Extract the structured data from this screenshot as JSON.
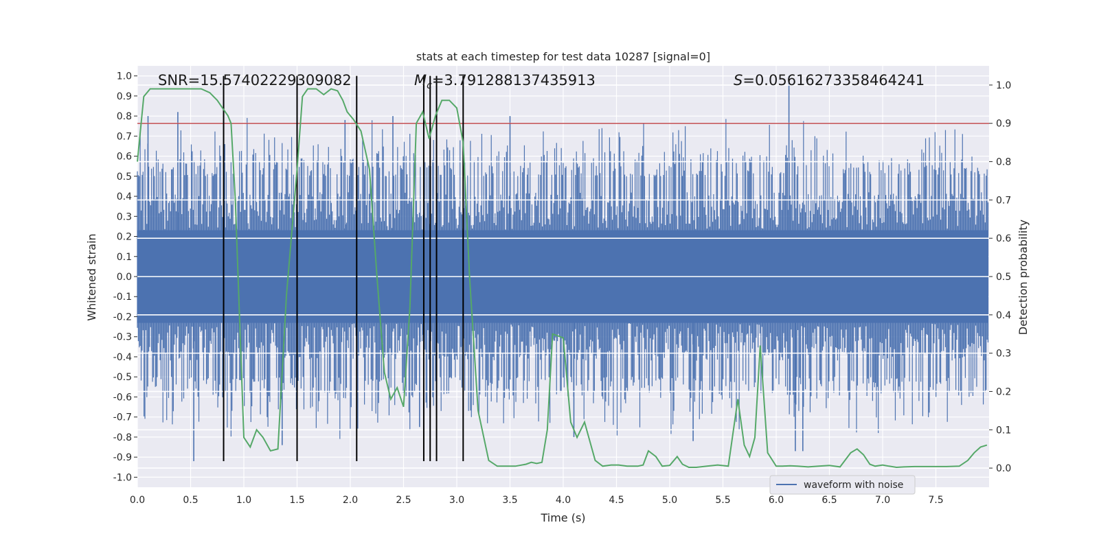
{
  "chart_data": {
    "type": "line",
    "title": "stats at each timestep for test data 10287 [signal=0]",
    "xlabel": "Time (s)",
    "ylabel_left": "Whitened strain",
    "ylabel_right": "Detection probability",
    "xlim": [
      0.0,
      8.0
    ],
    "ylim_left": [
      -1.05,
      1.05
    ],
    "ylim_right": [
      -0.05,
      1.05
    ],
    "x_ticks": [
      "0.0",
      "0.5",
      "1.0",
      "1.5",
      "2.0",
      "2.5",
      "3.0",
      "3.5",
      "4.0",
      "4.5",
      "5.0",
      "5.5",
      "6.0",
      "6.5",
      "7.0",
      "7.5"
    ],
    "y_ticks_left": [
      "1.0",
      "0.9",
      "0.8",
      "0.7",
      "0.6",
      "0.5",
      "0.4",
      "0.3",
      "0.2",
      "0.1",
      "0.0",
      "-0.1",
      "-0.2",
      "-0.3",
      "-0.4",
      "-0.5",
      "-0.6",
      "-0.7",
      "-0.8",
      "-0.9",
      "-1.0"
    ],
    "y_ticks_right": [
      "1.0",
      "0.9",
      "0.8",
      "0.7",
      "0.6",
      "0.5",
      "0.4",
      "0.3",
      "0.2",
      "0.1",
      "0.0"
    ],
    "grid": true,
    "legend": {
      "entries": [
        "waveform with noise"
      ],
      "location": "lower right"
    },
    "annotations": {
      "snr": "SNR=15.57402229309082",
      "mc_symbol": "M",
      "mc_subscript": "c",
      "mc_value": "=3.791288137435913",
      "s_symbol": "S",
      "s_value": "=0.05616273358464241"
    },
    "threshold": {
      "value": 0.9,
      "axis": "right",
      "color": "#c44e52"
    },
    "vertical_lines": {
      "x": [
        0.81,
        1.5,
        2.06,
        2.69,
        2.75,
        2.81,
        3.06
      ],
      "y_range": [
        -0.92,
        1.0
      ],
      "color": "#000000"
    },
    "waveform": {
      "name": "waveform with noise",
      "color": "#4c72b0",
      "x_start": 0.0,
      "x_end": 7.99,
      "n_samples": 900,
      "core_amplitude": 0.42,
      "spike_amplitude_range": [
        0.5,
        0.82
      ],
      "spikes": [
        {
          "x": 0.1,
          "y": 0.8
        },
        {
          "x": 0.38,
          "y": 0.82
        },
        {
          "x": 0.53,
          "y": -0.92
        },
        {
          "x": 0.82,
          "y": 0.66
        },
        {
          "x": 1.36,
          "y": -0.84
        },
        {
          "x": 1.95,
          "y": 0.78
        },
        {
          "x": 2.4,
          "y": 0.8
        },
        {
          "x": 3.5,
          "y": 0.8
        },
        {
          "x": 6.12,
          "y": 1.0
        },
        {
          "x": 6.25,
          "y": -0.87
        },
        {
          "x": 6.18,
          "y": -0.87
        },
        {
          "x": 1.22,
          "y": -0.7
        },
        {
          "x": 2.65,
          "y": -0.75
        },
        {
          "x": 5.22,
          "y": -0.82
        },
        {
          "x": 4.1,
          "y": -0.8
        }
      ]
    },
    "probability_series": {
      "name": "detection probability",
      "color": "#55a868",
      "x": [
        0.0,
        0.06,
        0.12,
        0.2,
        0.3,
        0.4,
        0.5,
        0.6,
        0.68,
        0.75,
        0.8,
        0.85,
        0.88,
        0.92,
        1.0,
        1.06,
        1.12,
        1.18,
        1.25,
        1.32,
        1.4,
        1.5,
        1.55,
        1.6,
        1.68,
        1.75,
        1.82,
        1.88,
        1.93,
        1.97,
        2.03,
        2.1,
        2.18,
        2.25,
        2.32,
        2.38,
        2.44,
        2.5,
        2.56,
        2.62,
        2.68,
        2.74,
        2.8,
        2.86,
        2.93,
        3.0,
        3.06,
        3.12,
        3.2,
        3.3,
        3.38,
        3.45,
        3.55,
        3.65,
        3.7,
        3.75,
        3.8,
        3.85,
        3.9,
        4.0,
        4.07,
        4.13,
        4.2,
        4.3,
        4.37,
        4.45,
        4.52,
        4.6,
        4.7,
        4.75,
        4.8,
        4.87,
        4.93,
        5.0,
        5.07,
        5.12,
        5.18,
        5.25,
        5.35,
        5.45,
        5.55,
        5.64,
        5.7,
        5.75,
        5.8,
        5.85,
        5.92,
        6.0,
        6.06,
        6.13,
        6.2,
        6.3,
        6.4,
        6.5,
        6.6,
        6.7,
        6.76,
        6.82,
        6.88,
        6.93,
        7.0,
        7.06,
        7.13,
        7.2,
        7.3,
        7.45,
        7.6,
        7.72,
        7.8,
        7.86,
        7.92,
        7.98
      ],
      "y": [
        0.8,
        0.97,
        0.99,
        0.99,
        0.99,
        0.99,
        0.99,
        0.99,
        0.98,
        0.96,
        0.94,
        0.92,
        0.9,
        0.7,
        0.08,
        0.055,
        0.1,
        0.08,
        0.045,
        0.05,
        0.45,
        0.78,
        0.97,
        0.99,
        0.99,
        0.975,
        0.99,
        0.985,
        0.96,
        0.93,
        0.91,
        0.88,
        0.78,
        0.5,
        0.25,
        0.18,
        0.21,
        0.16,
        0.42,
        0.9,
        0.93,
        0.86,
        0.92,
        0.96,
        0.96,
        0.94,
        0.85,
        0.5,
        0.15,
        0.02,
        0.005,
        0.005,
        0.005,
        0.01,
        0.015,
        0.012,
        0.015,
        0.1,
        0.35,
        0.34,
        0.12,
        0.08,
        0.12,
        0.02,
        0.005,
        0.008,
        0.008,
        0.005,
        0.005,
        0.008,
        0.045,
        0.03,
        0.005,
        0.007,
        0.03,
        0.01,
        0.002,
        0.002,
        0.005,
        0.008,
        0.005,
        0.18,
        0.06,
        0.03,
        0.08,
        0.32,
        0.04,
        0.005,
        0.005,
        0.006,
        0.005,
        0.003,
        0.005,
        0.007,
        0.003,
        0.04,
        0.05,
        0.035,
        0.01,
        0.005,
        0.008,
        0.005,
        0.002,
        0.003,
        0.004,
        0.004,
        0.004,
        0.005,
        0.02,
        0.04,
        0.055,
        0.06
      ]
    }
  }
}
